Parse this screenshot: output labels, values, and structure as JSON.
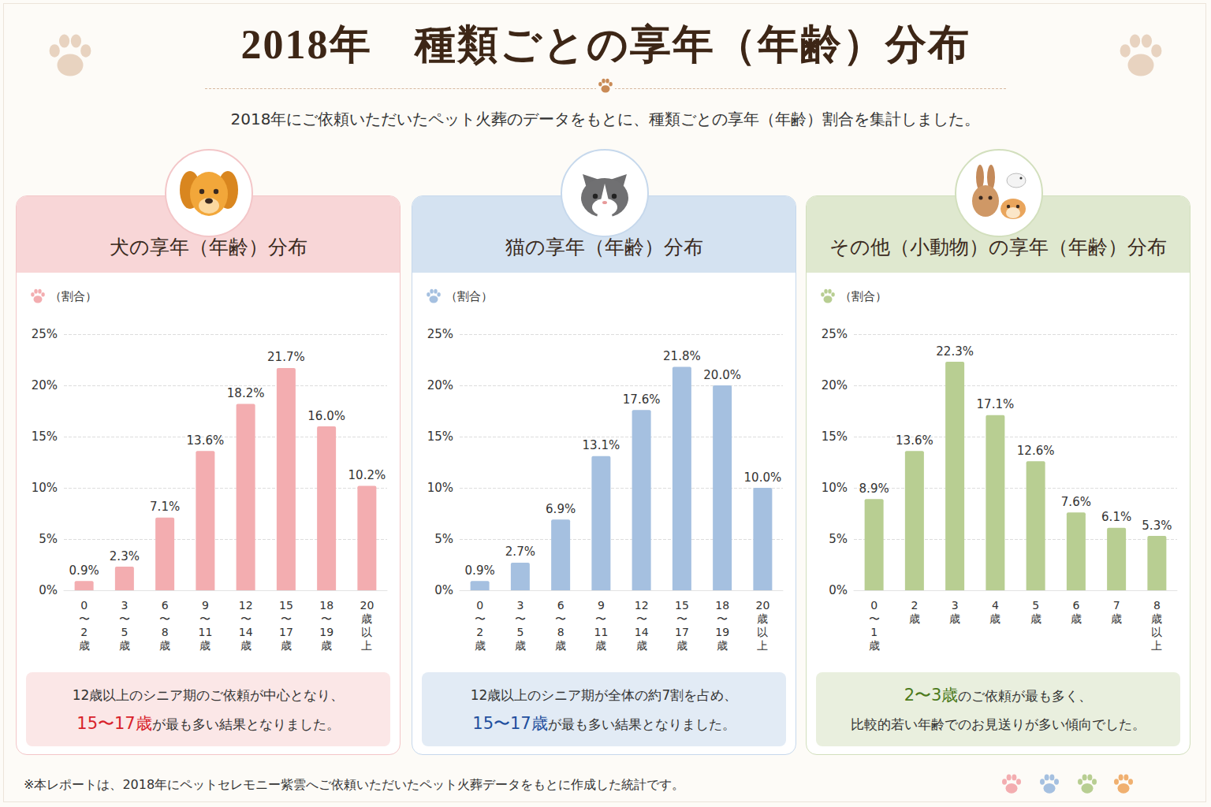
{
  "header": {
    "title": "2018年　種類ごとの享年（年齢）分布",
    "subtitle": "2018年にご依頼いただいたペット火葬のデータをもとに、種類ごとの享年（年齢）割合を集計しました。"
  },
  "footnote": "※本レポートは、2018年にペットセレモニー紫雲へご依頼いただいたペット火葬データをもとに作成した統計です。",
  "chart_data": [
    {
      "type": "bar",
      "title": "犬の享年（年齢）分布",
      "y_label": "（割合）",
      "categories": [
        "0〜2歳",
        "3〜5歳",
        "6〜8歳",
        "9〜11歳",
        "12〜14歳",
        "15〜17歳",
        "18〜19歳",
        "20歳以上"
      ],
      "values": [
        0.9,
        2.3,
        7.1,
        13.6,
        18.2,
        21.7,
        16.0,
        10.2
      ],
      "value_labels": [
        "0.9%",
        "2.3%",
        "7.1%",
        "13.6%",
        "18.2%",
        "21.7%",
        "16.0%",
        "10.2%"
      ],
      "color": "#f3adb0",
      "ylim": [
        0,
        25
      ],
      "yticks": [
        {
          "value": 0,
          "label": "0%"
        },
        {
          "value": 5,
          "label": "5%"
        },
        {
          "value": 10,
          "label": "10%"
        },
        {
          "value": 15,
          "label": "15%"
        },
        {
          "value": 20,
          "label": "20%"
        },
        {
          "value": 25,
          "label": "25%"
        }
      ],
      "grid": true,
      "data_labels": true,
      "annotation": [
        [
          {
            "text": "12歳以上のシニア期のご依頼が中心となり、"
          }
        ],
        [
          {
            "text": "15〜17歳",
            "em": true
          },
          {
            "text": "が最も多い結果となりました。"
          }
        ]
      ]
    },
    {
      "type": "bar",
      "title": "猫の享年（年齢）分布",
      "y_label": "（割合）",
      "categories": [
        "0〜2歳",
        "3〜5歳",
        "6〜8歳",
        "9〜11歳",
        "12〜14歳",
        "15〜17歳",
        "18〜19歳",
        "20歳以上"
      ],
      "values": [
        0.9,
        2.7,
        6.9,
        13.1,
        17.6,
        21.8,
        20.0,
        10.0
      ],
      "value_labels": [
        "0.9%",
        "2.7%",
        "6.9%",
        "13.1%",
        "17.6%",
        "21.8%",
        "20.0%",
        "10.0%"
      ],
      "color": "#a5c0e0",
      "ylim": [
        0,
        25
      ],
      "yticks": [
        {
          "value": 0,
          "label": "0%"
        },
        {
          "value": 5,
          "label": "5%"
        },
        {
          "value": 10,
          "label": "10%"
        },
        {
          "value": 15,
          "label": "15%"
        },
        {
          "value": 20,
          "label": "20%"
        },
        {
          "value": 25,
          "label": "25%"
        }
      ],
      "grid": true,
      "data_labels": true,
      "annotation": [
        [
          {
            "text": "12歳以上のシニア期が全体の約7割を占め、"
          }
        ],
        [
          {
            "text": "15〜17歳",
            "em": true
          },
          {
            "text": "が最も多い結果となりました。"
          }
        ]
      ]
    },
    {
      "type": "bar",
      "title": "その他（小動物）の享年（年齢）分布",
      "y_label": "（割合）",
      "categories": [
        "0〜1歳",
        "2歳",
        "3歳",
        "4歳",
        "5歳",
        "6歳",
        "7歳",
        "8歳以上"
      ],
      "values": [
        8.9,
        13.6,
        22.3,
        17.1,
        12.6,
        7.6,
        6.1,
        5.3
      ],
      "value_labels": [
        "8.9%",
        "13.6%",
        "22.3%",
        "17.1%",
        "12.6%",
        "7.6%",
        "6.1%",
        "5.3%"
      ],
      "color": "#b8ce92",
      "ylim": [
        0,
        25
      ],
      "yticks": [
        {
          "value": 0,
          "label": "0%"
        },
        {
          "value": 5,
          "label": "5%"
        },
        {
          "value": 10,
          "label": "10%"
        },
        {
          "value": 15,
          "label": "15%"
        },
        {
          "value": 20,
          "label": "20%"
        },
        {
          "value": 25,
          "label": "25%"
        }
      ],
      "grid": true,
      "data_labels": true,
      "annotation": [
        [
          {
            "text": "2〜3歳",
            "em": true
          },
          {
            "text": "のご依頼が最も多く、"
          }
        ],
        [
          {
            "text": "比較的若い年齢でのお見送りが多い傾向でした。"
          }
        ]
      ]
    }
  ]
}
